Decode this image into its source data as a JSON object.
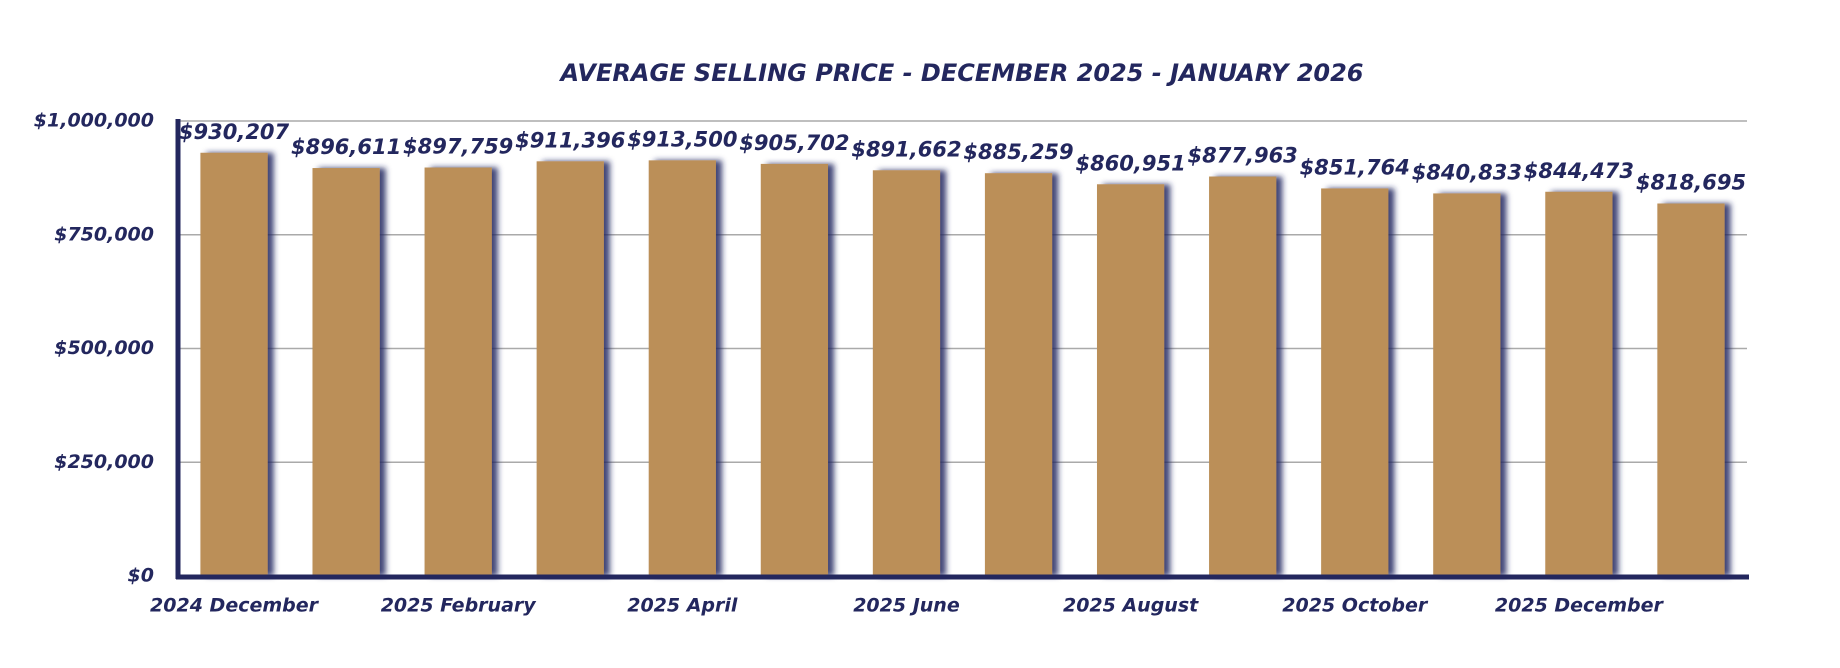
{
  "chart_data": {
    "type": "bar",
    "title": "AVERAGE SELLING PRICE - DECEMBER 2025 - JANUARY 2026",
    "categories": [
      "2024 December",
      null,
      "2025 February",
      null,
      "2025 April",
      null,
      "2025 June",
      null,
      "2025 August",
      null,
      "2025 October",
      null,
      "2025 December",
      null
    ],
    "values": [
      930207,
      896611,
      897759,
      911396,
      913500,
      905702,
      891662,
      885259,
      860951,
      877963,
      851764,
      840833,
      844473,
      818695
    ],
    "value_labels": [
      "$930,207",
      "$896,611",
      "$897,759",
      "$911,396",
      "$913,500",
      "$905,702",
      "$891,662",
      "$885,259",
      "$860,951",
      "$877,963",
      "$851,764",
      "$840,833",
      "$844,473",
      "$818,695"
    ],
    "color": "#bb8f58",
    "ylim": [
      0,
      1000000
    ],
    "yticks": [
      {
        "value": 0,
        "label": "$0"
      },
      {
        "value": 250000,
        "label": "$250,000"
      },
      {
        "value": 500000,
        "label": "$500,000"
      },
      {
        "value": 750000,
        "label": "$750,000"
      },
      {
        "value": 1000000,
        "label": "$1,000,000"
      }
    ],
    "grid": true
  }
}
